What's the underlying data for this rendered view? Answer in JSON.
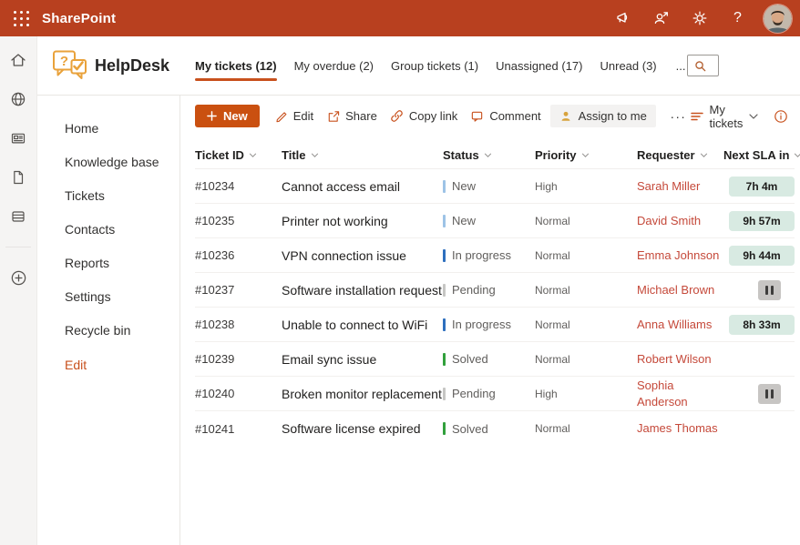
{
  "colors": {
    "topbar_bg": "#b8401f",
    "accent": "#ca5010",
    "tab_underline": "#c8511d",
    "brand_gold": "#e9a23b",
    "requester_link": "#c5493a",
    "sla_badge_bg": "#d8eae2",
    "status_colors": {
      "New": "#9dc3e6",
      "In progress": "#2e6fbe",
      "Pending": "#c6c6c4",
      "Solved": "#31a03c"
    }
  },
  "topbar": {
    "app_name": "SharePoint",
    "help_glyph": "?",
    "icons": [
      "waffle-icon",
      "megaphone-icon",
      "people-share-icon",
      "gear-icon",
      "help-icon",
      "avatar"
    ]
  },
  "rail": {
    "icons": [
      "home-icon",
      "globe-icon",
      "news-icon",
      "document-icon",
      "stack-icon",
      "add-circle-icon"
    ]
  },
  "sidebar": {
    "title": "HelpDesk",
    "items": [
      "Home",
      "Knowledge base",
      "Tickets",
      "Contacts",
      "Reports",
      "Settings",
      "Recycle bin"
    ],
    "edit_label": "Edit"
  },
  "tabs": {
    "items": [
      {
        "label": "My tickets (12)",
        "active": true
      },
      {
        "label": "My overdue (2)",
        "active": false
      },
      {
        "label": "Group tickets (1)",
        "active": false
      },
      {
        "label": "Unassigned (17)",
        "active": false
      },
      {
        "label": "Unread (3)",
        "active": false
      }
    ],
    "overflow": "..."
  },
  "search": {
    "placeholder": "Search tickets"
  },
  "toolbar": {
    "new_label": "New",
    "actions": [
      {
        "label": "Edit"
      },
      {
        "label": "Share"
      },
      {
        "label": "Copy link"
      },
      {
        "label": "Comment"
      },
      {
        "label": "Assign to me",
        "highlighted": true
      }
    ],
    "more_label": "...",
    "view": {
      "label": "My tickets"
    }
  },
  "table": {
    "headers": [
      "Ticket ID",
      "Title",
      "Status",
      "Priority",
      "Requester",
      "Next SLA in"
    ],
    "rows": [
      {
        "id": "#10234",
        "title": "Cannot access email",
        "status": "New",
        "priority": "High",
        "requester": "Sarah Miller",
        "sla": "7h 4m",
        "sla_type": "time"
      },
      {
        "id": "#10235",
        "title": "Printer not working",
        "status": "New",
        "priority": "Normal",
        "requester": "David Smith",
        "sla": "9h 57m",
        "sla_type": "time"
      },
      {
        "id": "#10236",
        "title": "VPN connection issue",
        "status": "In progress",
        "priority": "Normal",
        "requester": "Emma Johnson",
        "sla": "9h 44m",
        "sla_type": "time"
      },
      {
        "id": "#10237",
        "title": "Software installation request",
        "status": "Pending",
        "priority": "Normal",
        "requester": "Michael Brown",
        "sla": "",
        "sla_type": "paused"
      },
      {
        "id": "#10238",
        "title": "Unable to connect to WiFi",
        "status": "In progress",
        "priority": "Normal",
        "requester": "Anna Williams",
        "sla": "8h 33m",
        "sla_type": "time"
      },
      {
        "id": "#10239",
        "title": "Email sync issue",
        "status": "Solved",
        "priority": "Normal",
        "requester": "Robert Wilson",
        "sla": "",
        "sla_type": "none"
      },
      {
        "id": "#10240",
        "title": "Broken monitor replacement",
        "status": "Pending",
        "priority": "High",
        "requester": "Sophia Anderson",
        "sla": "",
        "sla_type": "paused"
      },
      {
        "id": "#10241",
        "title": "Software license expired",
        "status": "Solved",
        "priority": "Normal",
        "requester": "James Thomas",
        "sla": "",
        "sla_type": "none"
      }
    ]
  }
}
